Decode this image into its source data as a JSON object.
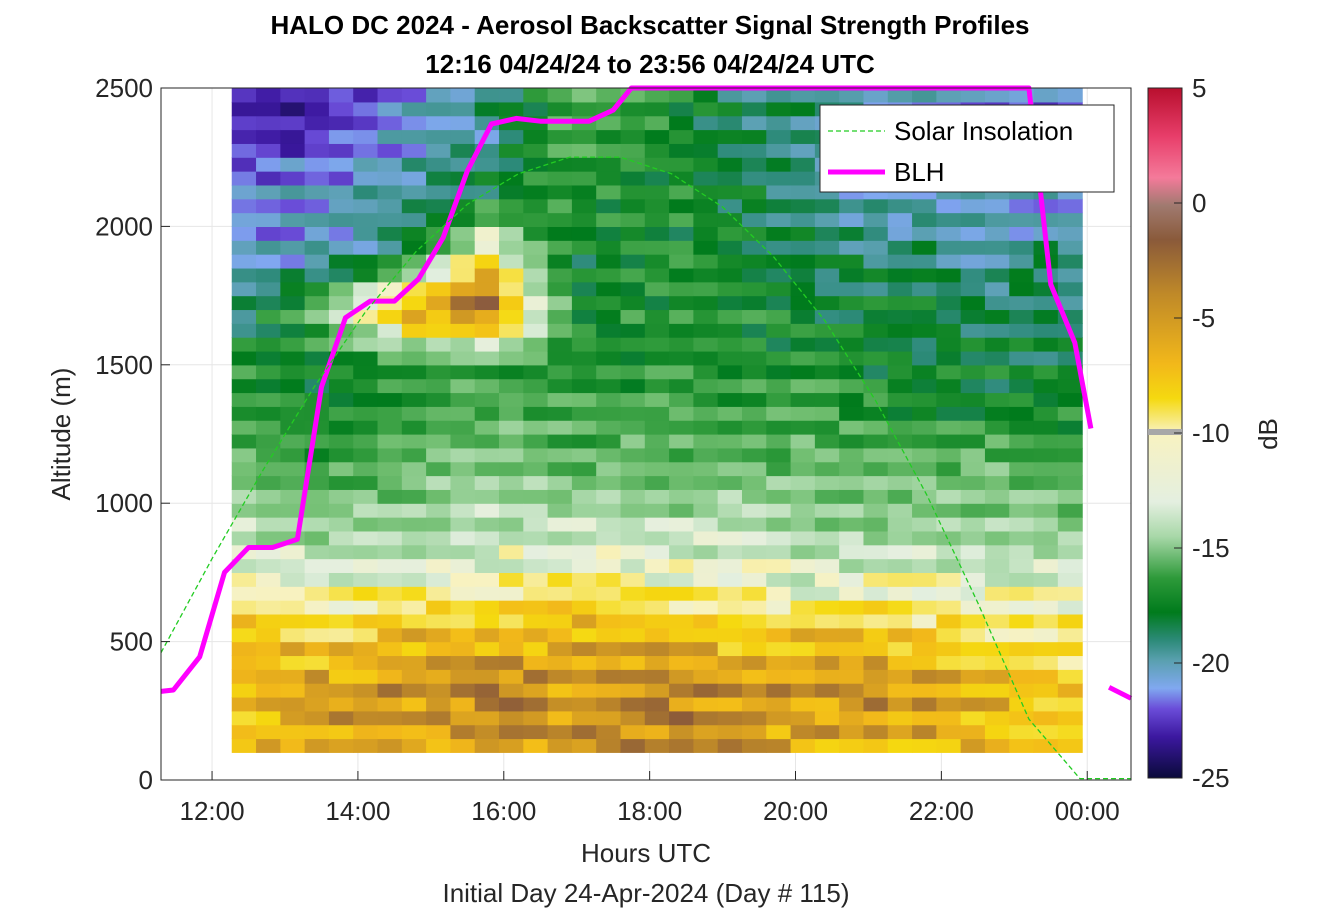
{
  "chart_data": {
    "type": "heatmap",
    "title": "HALO DC 2024 - Aerosol Backscatter Signal Strength Profiles",
    "subtitle": "12:16 04/24/24 to 23:56 04/24/24  UTC",
    "xlabel": "Hours UTC",
    "x_sublabel": "Initial Day 24-Apr-2024 (Day # 115)",
    "ylabel": "Altitude (m)",
    "xlim": [
      11.3,
      24.6
    ],
    "ylim": [
      0,
      2500
    ],
    "x_ticks": [
      12,
      14,
      16,
      18,
      20,
      22,
      24
    ],
    "x_tick_labels": [
      "12:00",
      "14:00",
      "16:00",
      "18:00",
      "20:00",
      "22:00",
      "00:00"
    ],
    "y_ticks": [
      0,
      500,
      1000,
      1500,
      2000,
      2500
    ],
    "y_tick_labels": [
      "0",
      "500",
      "1000",
      "1500",
      "2000",
      "2500"
    ],
    "grid": true,
    "colorbar": {
      "label": "dB",
      "range": [
        -25,
        5
      ],
      "ticks": [
        5,
        0,
        -5,
        -10,
        -15,
        -20,
        -25
      ],
      "tick_labels": [
        "5",
        "0",
        "-5",
        "-10",
        "-15",
        "-20",
        "-25"
      ]
    },
    "heatmap_extent": {
      "x_start": 12.27,
      "x_end": 23.93,
      "y_start": 100,
      "y_end": 2500
    },
    "legend": {
      "position": "top-right",
      "entries": [
        {
          "label": "Solar Insolation",
          "color": "#22cc22",
          "style": "dashed"
        },
        {
          "label": "BLH",
          "color": "#ff00ff",
          "style": "solid"
        }
      ]
    },
    "series": [
      {
        "name": "BLH",
        "color": "#ff00ff",
        "x": [
          11.3,
          11.47,
          11.83,
          12.17,
          12.5,
          12.83,
          13.17,
          13.5,
          13.83,
          14.17,
          14.5,
          14.83,
          15.17,
          15.5,
          15.83,
          16.17,
          16.5,
          16.83,
          17.17,
          17.5,
          17.75,
          23.2,
          23.5,
          23.83,
          24.05
        ],
        "y": [
          320,
          325,
          445,
          750,
          840,
          840,
          870,
          1420,
          1670,
          1730,
          1730,
          1810,
          1960,
          2200,
          2370,
          2390,
          2380,
          2380,
          2380,
          2420,
          2530,
          2530,
          1790,
          1580,
          1270
        ]
      },
      {
        "name": "BLH segment",
        "color": "#ff00ff",
        "x": [
          24.3,
          24.6
        ],
        "y": [
          335,
          295
        ]
      },
      {
        "name": "Solar Insolation",
        "color": "#22cc22",
        "x": [
          11.3,
          12.0,
          12.7,
          13.4,
          14.1,
          14.8,
          15.5,
          16.2,
          16.9,
          17.6,
          18.3,
          19.0,
          19.7,
          20.4,
          21.1,
          21.8,
          22.5,
          23.2,
          23.9,
          24.0,
          24.6
        ],
        "y": [
          460,
          800,
          1120,
          1420,
          1690,
          1910,
          2080,
          2190,
          2250,
          2250,
          2190,
          2070,
          1890,
          1660,
          1370,
          1030,
          640,
          220,
          5,
          5,
          5
        ]
      }
    ],
    "profile_rows_alt_m": [
      100,
      300,
      500,
      700,
      900,
      1100,
      1300,
      1500,
      1700,
      1900,
      2100,
      2300,
      2500
    ],
    "profile_row_values_db": [
      [
        -8,
        -7,
        -7,
        -10,
        -12,
        -14,
        -15,
        -16,
        -19,
        -20,
        -21,
        -22,
        -23
      ],
      [
        -7,
        -6,
        -8,
        -11,
        -13,
        -15,
        -16,
        -17,
        -14,
        -20,
        -20,
        -22,
        -23
      ],
      [
        -7,
        -6,
        -7,
        -10,
        -13,
        -14,
        -15,
        -16,
        -6,
        -18,
        -19,
        -20,
        -21
      ],
      [
        -6,
        -5,
        -7,
        -10,
        -12,
        -13,
        -14,
        -15,
        -4,
        -9,
        -17,
        -19,
        -18
      ],
      [
        -6,
        -6,
        -7,
        -9,
        -12,
        -14,
        -15,
        -16,
        -16,
        -17,
        -16,
        -15,
        -15
      ],
      [
        -6,
        -5,
        -7,
        -10,
        -12,
        -14,
        -15,
        -16,
        -16,
        -16,
        -16,
        -16,
        -16
      ],
      [
        -6,
        -6,
        -8,
        -10,
        -12,
        -14,
        -15,
        -16,
        -16,
        -17,
        -17,
        -18,
        -18
      ],
      [
        -7,
        -6,
        -7,
        -11,
        -13,
        -14,
        -15,
        -16,
        -17,
        -18,
        -19,
        -19,
        -18
      ],
      [
        -7,
        -6,
        -8,
        -10,
        -13,
        -14,
        -16,
        -17,
        -17,
        -18,
        -20,
        -21,
        -20
      ],
      [
        -8,
        -7,
        -9,
        -11,
        -13,
        -14,
        -16,
        -17,
        -18,
        -19,
        -20,
        -20,
        -21
      ],
      [
        -8,
        -8,
        -9,
        -11,
        -13,
        -15,
        -16,
        -17,
        -18,
        -18,
        -20,
        -21,
        -22
      ]
    ]
  }
}
